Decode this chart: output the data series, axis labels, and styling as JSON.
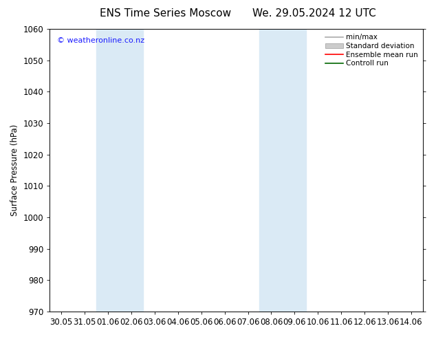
{
  "title_left": "ENS Time Series Moscow",
  "title_right": "We. 29.05.2024 12 UTC",
  "ylabel": "Surface Pressure (hPa)",
  "ylim": [
    970,
    1060
  ],
  "yticks": [
    970,
    980,
    990,
    1000,
    1010,
    1020,
    1030,
    1040,
    1050,
    1060
  ],
  "xtick_labels": [
    "30.05",
    "31.05",
    "01.06",
    "02.06",
    "03.06",
    "04.06",
    "05.06",
    "06.06",
    "07.06",
    "08.06",
    "09.06",
    "10.06",
    "11.06",
    "12.06",
    "13.06",
    "14.06"
  ],
  "shaded_bands": [
    {
      "xstart": 2,
      "xend": 4,
      "color": "#daeaf5"
    },
    {
      "xstart": 9,
      "xend": 11,
      "color": "#daeaf5"
    }
  ],
  "watermark": "© weatheronline.co.nz",
  "watermark_color": "#1a1aff",
  "legend_items": [
    {
      "label": "min/max",
      "color": "#aaaaaa",
      "type": "line"
    },
    {
      "label": "Standard deviation",
      "color": "#cccccc",
      "type": "band"
    },
    {
      "label": "Ensemble mean run",
      "color": "#ff0000",
      "type": "line"
    },
    {
      "label": "Controll run",
      "color": "#006600",
      "type": "line"
    }
  ],
  "bg_color": "#ffffff",
  "font_size": 8.5,
  "title_fontsize": 11
}
